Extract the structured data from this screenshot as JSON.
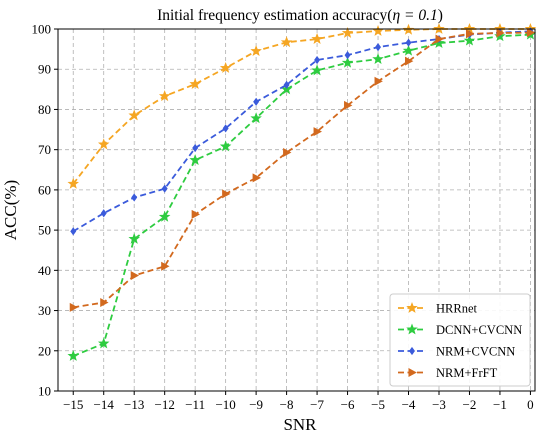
{
  "chart_data": {
    "type": "line",
    "title": "Initial frequency estimation accuracy(",
    "title_math": "η = 0.1",
    "title_suffix": ")",
    "xlabel": "SNR",
    "ylabel": "ACC(%)",
    "x": [
      -15,
      -14,
      -13,
      -12,
      -11,
      -10,
      -9,
      -8,
      -7,
      -6,
      -5,
      -4,
      -3,
      -2,
      -1,
      0
    ],
    "x_tick_labels": [
      "−15",
      "−14",
      "−13",
      "−12",
      "−11",
      "−10",
      "−9",
      "−8",
      "−7",
      "−6",
      "−5",
      "−4",
      "−3",
      "−2",
      "−1",
      "0"
    ],
    "xlim": [
      -15.5,
      0.15
    ],
    "ylim": [
      10,
      100
    ],
    "y_ticks": [
      10,
      20,
      30,
      40,
      50,
      60,
      70,
      80,
      90,
      100
    ],
    "grid": true,
    "legend_position": "bottom-right",
    "series": [
      {
        "name": "HRRnet",
        "color": "#f5a623",
        "marker": "star",
        "values": [
          61.5,
          71.3,
          78.5,
          83.3,
          86.3,
          90.3,
          94.5,
          96.7,
          97.5,
          99.0,
          99.5,
          99.8,
          100,
          100,
          100,
          100
        ]
      },
      {
        "name": "DCNN+CVCNN",
        "color": "#2ecc40",
        "marker": "star",
        "values": [
          18.7,
          21.8,
          47.8,
          53.3,
          67.4,
          70.8,
          77.8,
          85.0,
          89.7,
          91.6,
          92.5,
          94.6,
          96.5,
          97.1,
          98.2,
          98.6
        ]
      },
      {
        "name": "NRM+CVCNN",
        "color": "#3b5bdb",
        "marker": "diamond",
        "values": [
          49.7,
          54.2,
          58.1,
          60.3,
          70.4,
          75.3,
          81.9,
          86.1,
          92.3,
          93.5,
          95.5,
          96.6,
          97.5,
          98.6,
          99.1,
          99.4
        ]
      },
      {
        "name": "NRM+FrFT",
        "color": "#d2691e",
        "marker": "triangle-right",
        "values": [
          30.8,
          32.0,
          38.7,
          41.0,
          53.9,
          59.0,
          63.0,
          69.3,
          74.5,
          81.0,
          87.0,
          92.0,
          97.5,
          98.8,
          99.0,
          99.1
        ]
      }
    ]
  }
}
